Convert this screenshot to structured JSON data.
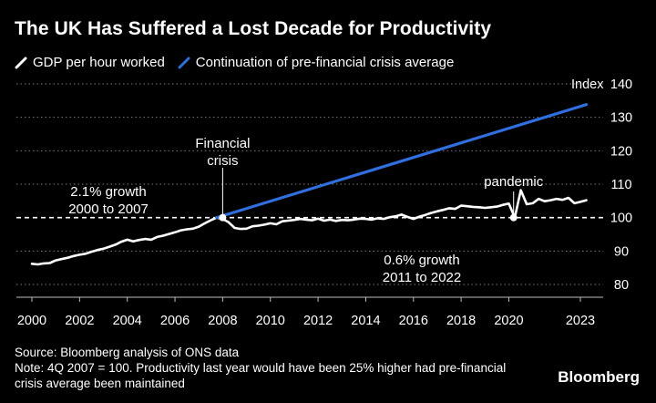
{
  "title": "The UK Has Suffered a Lost Decade for Productivity",
  "legend": {
    "items": [
      {
        "label": "GDP per hour worked",
        "color": "#ffffff"
      },
      {
        "label": "Continuation of pre-financial crisis average",
        "color": "#2f6fe0"
      }
    ]
  },
  "footer": {
    "source": "Source: Bloomberg analysis of ONS data",
    "note": "Note: 4Q 2007 = 100. Productivity last year would have been 25% higher had pre-financial crisis average been maintained"
  },
  "brand": "Bloomberg",
  "chart_data": {
    "type": "line",
    "ylabel": "Index",
    "ylim": [
      75,
      140
    ],
    "xlim": [
      2000,
      2023.5
    ],
    "yticks": [
      80,
      90,
      100,
      110,
      120,
      130,
      140
    ],
    "xticks": [
      2000,
      2002,
      2004,
      2006,
      2008,
      2010,
      2012,
      2014,
      2016,
      2018,
      2020,
      2023
    ],
    "reference_line": {
      "y": 100,
      "style": "dashed"
    },
    "annotations": [
      {
        "text": [
          "Financial",
          "crisis"
        ],
        "x": 2008,
        "y": 100
      },
      {
        "text": [
          "pandemic"
        ],
        "x": 2020.2,
        "y": 100
      },
      {
        "text": [
          "2.1% growth",
          "2000 to 2007"
        ]
      },
      {
        "text": [
          "0.6% growth",
          "2011 to 2022"
        ]
      }
    ],
    "series": [
      {
        "name": "GDP per hour worked",
        "color": "#ffffff",
        "x": [
          2000.0,
          2000.25,
          2000.5,
          2000.75,
          2001.0,
          2001.25,
          2001.5,
          2001.75,
          2002.0,
          2002.25,
          2002.5,
          2002.75,
          2003.0,
          2003.25,
          2003.5,
          2003.75,
          2004.0,
          2004.25,
          2004.5,
          2004.75,
          2005.0,
          2005.25,
          2005.5,
          2005.75,
          2006.0,
          2006.25,
          2006.5,
          2006.75,
          2007.0,
          2007.25,
          2007.5,
          2007.75,
          2008.0,
          2008.25,
          2008.5,
          2008.75,
          2009.0,
          2009.25,
          2009.5,
          2009.75,
          2010.0,
          2010.25,
          2010.5,
          2010.75,
          2011.0,
          2011.25,
          2011.5,
          2011.75,
          2012.0,
          2012.25,
          2012.5,
          2012.75,
          2013.0,
          2013.25,
          2013.5,
          2013.75,
          2014.0,
          2014.25,
          2014.5,
          2014.75,
          2015.0,
          2015.25,
          2015.5,
          2015.75,
          2016.0,
          2016.25,
          2016.5,
          2016.75,
          2017.0,
          2017.25,
          2017.5,
          2017.75,
          2018.0,
          2018.25,
          2018.5,
          2018.75,
          2019.0,
          2019.25,
          2019.5,
          2019.75,
          2020.0,
          2020.25,
          2020.5,
          2020.75,
          2021.0,
          2021.25,
          2021.5,
          2021.75,
          2022.0,
          2022.25,
          2022.5,
          2022.75,
          2023.0,
          2023.25
        ],
        "values": [
          86.2,
          86.0,
          86.3,
          86.4,
          87.2,
          87.6,
          88.0,
          88.5,
          88.9,
          89.2,
          89.8,
          90.3,
          90.7,
          91.3,
          91.9,
          92.8,
          93.4,
          92.9,
          93.3,
          93.6,
          93.4,
          94.2,
          94.6,
          95.1,
          95.6,
          96.2,
          96.5,
          96.7,
          97.3,
          98.3,
          99.2,
          100.0,
          99.6,
          98.6,
          96.9,
          96.6,
          96.7,
          97.4,
          97.6,
          97.9,
          98.3,
          98.0,
          98.9,
          99.1,
          99.3,
          99.6,
          99.4,
          99.2,
          99.7,
          99.1,
          99.4,
          99.0,
          99.3,
          99.2,
          99.4,
          99.7,
          99.6,
          99.4,
          99.8,
          99.6,
          100.1,
          100.4,
          100.9,
          100.2,
          99.6,
          100.3,
          100.8,
          101.4,
          101.9,
          102.3,
          102.8,
          102.6,
          103.6,
          103.4,
          103.2,
          103.1,
          102.9,
          103.1,
          103.3,
          103.8,
          104.2,
          100.0,
          108.2,
          104.0,
          104.3,
          105.6,
          104.9,
          105.2,
          105.6,
          105.3,
          105.9,
          104.3,
          104.7,
          105.2
        ]
      },
      {
        "name": "Continuation of pre-financial crisis average",
        "color": "#2f6fe0",
        "x": [
          2007.75,
          2023.25
        ],
        "values": [
          100.0,
          133.8
        ]
      }
    ]
  }
}
